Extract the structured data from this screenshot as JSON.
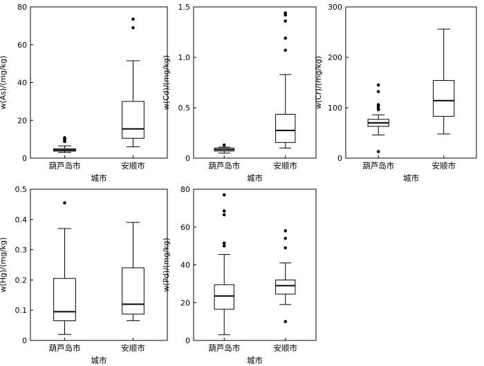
{
  "chart_data": [
    {
      "type": "box",
      "ylabel": "w(As)/(mg/kg)",
      "xlabel": "城市",
      "categories": [
        "葫芦岛市",
        "安顺市"
      ],
      "ylim": [
        0,
        80
      ],
      "yticks": [
        0,
        20,
        40,
        60,
        80
      ],
      "boxes": [
        {
          "min": 3,
          "q1": 3.7,
          "median": 4.3,
          "q3": 5.0,
          "max": 6.5,
          "outliers": [
            8.8,
            9.5,
            10.2,
            10.8
          ]
        },
        {
          "min": 6,
          "q1": 10.5,
          "median": 15.5,
          "q3": 30,
          "max": 51.5,
          "outliers": [
            69,
            73.5
          ]
        }
      ]
    },
    {
      "type": "box",
      "ylabel": "w(Cd)/(mg/kg)",
      "xlabel": "城市",
      "categories": [
        "葫芦岛市",
        "安顺市"
      ],
      "ylim": [
        0,
        1.5
      ],
      "yticks": [
        0,
        0.5,
        1.0,
        1.5
      ],
      "ytick_labels": [
        "0",
        "0.5",
        "1.0",
        "1.5"
      ],
      "boxes": [
        {
          "min": 0.05,
          "q1": 0.07,
          "median": 0.085,
          "q3": 0.1,
          "max": 0.11,
          "outliers": [
            0.13
          ]
        },
        {
          "min": 0.1,
          "q1": 0.155,
          "median": 0.275,
          "q3": 0.435,
          "max": 0.83,
          "outliers": [
            1.07,
            1.19,
            1.36,
            1.42,
            1.44
          ]
        }
      ]
    },
    {
      "type": "box",
      "ylabel": "w(Cr)/(mg/kg)",
      "xlabel": "城市",
      "categories": [
        "葫芦岛市",
        "安顺市"
      ],
      "ylim": [
        0,
        300
      ],
      "yticks": [
        0,
        100,
        200,
        300
      ],
      "boxes": [
        {
          "min": 46,
          "q1": 63,
          "median": 70,
          "q3": 77,
          "max": 86,
          "outliers": [
            13,
            96,
            99,
            103,
            106,
            132,
            145
          ]
        },
        {
          "min": 48,
          "q1": 83,
          "median": 114,
          "q3": 154,
          "max": 256,
          "outliers": []
        }
      ]
    },
    {
      "type": "box",
      "ylabel": "w(Hg)/(mg/kg)",
      "xlabel": "城市",
      "categories": [
        "葫芦岛市",
        "安顺市"
      ],
      "ylim": [
        0,
        0.5
      ],
      "yticks": [
        0,
        0.1,
        0.2,
        0.3,
        0.4,
        0.5
      ],
      "boxes": [
        {
          "min": 0.02,
          "q1": 0.065,
          "median": 0.095,
          "q3": 0.205,
          "max": 0.37,
          "outliers": [
            0.455
          ]
        },
        {
          "min": 0.065,
          "q1": 0.087,
          "median": 0.12,
          "q3": 0.24,
          "max": 0.39,
          "outliers": []
        }
      ]
    },
    {
      "type": "box",
      "ylabel": "w(Pd)/(mg/kg)",
      "xlabel": "城市",
      "categories": [
        "葫芦岛市",
        "安顺市"
      ],
      "ylim": [
        0,
        80
      ],
      "yticks": [
        0,
        20,
        40,
        60,
        80
      ],
      "boxes": [
        {
          "min": 3,
          "q1": 16.5,
          "median": 23.5,
          "q3": 29.5,
          "max": 45.5,
          "outliers": [
            50,
            51.5,
            66.5,
            68.5,
            77
          ]
        },
        {
          "min": 19,
          "q1": 24.5,
          "median": 29,
          "q3": 32,
          "max": 41,
          "outliers": [
            10,
            49,
            54,
            58
          ]
        }
      ]
    }
  ]
}
